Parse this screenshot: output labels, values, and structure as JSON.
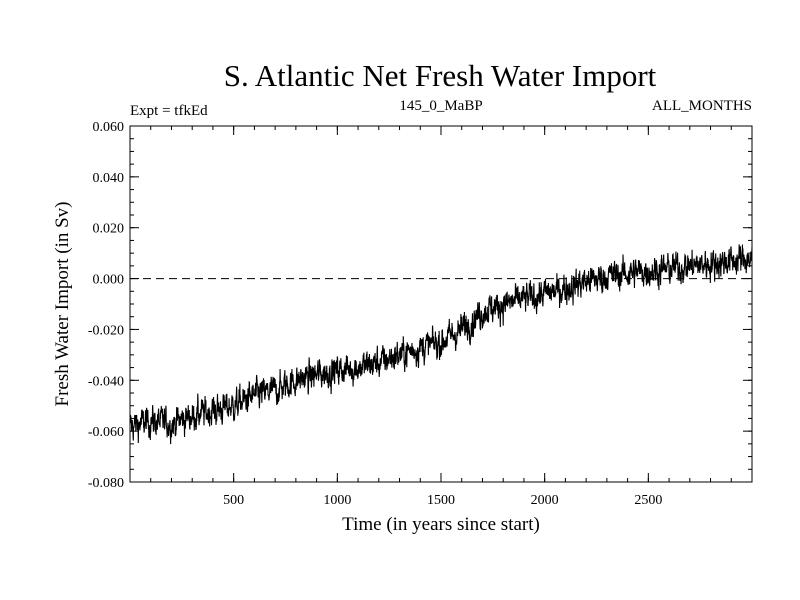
{
  "chart_data": {
    "type": "line",
    "title": "S. Atlantic Net Fresh Water Import",
    "subtitle_left": "Expt = tfkEd",
    "subtitle_center": "145_0_MaBP",
    "subtitle_right": "ALL_MONTHS",
    "xlabel": "Time (in years since start)",
    "ylabel": "Fresh Water Import (in Sv)",
    "xlim": [
      0,
      3000
    ],
    "ylim": [
      -0.08,
      0.06
    ],
    "x_ticks": [
      500,
      1000,
      1500,
      2000,
      2500
    ],
    "x_tick_labels": [
      "500",
      "1000",
      "1500",
      "2000",
      "2500"
    ],
    "y_ticks": [
      -0.08,
      -0.06,
      -0.04,
      -0.02,
      0.0,
      0.02,
      0.04,
      0.06
    ],
    "y_tick_labels": [
      "-0.080",
      "-0.060",
      "-0.040",
      "-0.020",
      "0.000",
      "0.020",
      "0.040",
      "0.060"
    ],
    "reference_line": {
      "y": 0.0,
      "style": "dashed"
    },
    "grid": false,
    "series": [
      {
        "x": [
          0,
          100,
          200,
          300,
          400,
          500,
          600,
          700,
          800,
          900,
          1000,
          1100,
          1200,
          1300,
          1400,
          1500,
          1600,
          1700,
          1800,
          1900,
          2000,
          2100,
          2200,
          2300,
          2400,
          2500,
          2600,
          2700,
          2800,
          2900,
          3000
        ],
        "values": [
          -0.058,
          -0.056,
          -0.057,
          -0.054,
          -0.052,
          -0.05,
          -0.046,
          -0.044,
          -0.04,
          -0.038,
          -0.036,
          -0.035,
          -0.033,
          -0.03,
          -0.027,
          -0.025,
          -0.02,
          -0.013,
          -0.01,
          -0.008,
          -0.006,
          -0.004,
          -0.001,
          0.001,
          0.002,
          0.003,
          0.004,
          0.005,
          0.006,
          0.007,
          0.008
        ]
      }
    ]
  }
}
